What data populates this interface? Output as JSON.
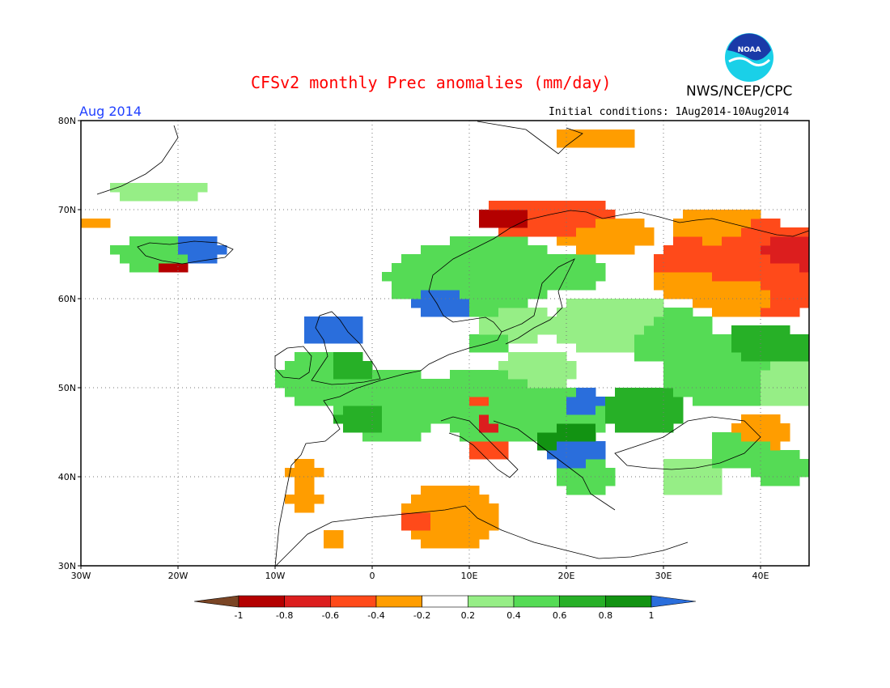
{
  "header": {
    "title": "CFSv2 monthly Prec anomalies (mm/day)",
    "organization": "NWS/NCEP/CPC",
    "period": "Aug 2014",
    "initial_conditions": "Initial conditions: 1Aug2014-10Aug2014"
  },
  "logo": {
    "text": "NOAA",
    "icon": "noaa-logo-icon"
  },
  "map": {
    "lon_range": [
      -30,
      45
    ],
    "lat_range": [
      30,
      80
    ],
    "x_ticks": [
      "30W",
      "20W",
      "10W",
      "0",
      "10E",
      "20E",
      "30E",
      "40E"
    ],
    "y_ticks": [
      "30N",
      "40N",
      "50N",
      "60N",
      "70N",
      "80N"
    ],
    "grid": "dotted"
  },
  "legend": {
    "labels": [
      "-1",
      "-0.8",
      "-0.6",
      "-0.4",
      "-0.2",
      "0.2",
      "0.4",
      "0.6",
      "0.8",
      "1"
    ],
    "colors": [
      "#7a4525",
      "#b40000",
      "#dc1e1e",
      "#ff4a1a",
      "#ff9d00",
      "#ffffff",
      "#96ee86",
      "#55db55",
      "#27b027",
      "#129312",
      "#2a6edc"
    ]
  },
  "colors": {
    "title": "#ff0000",
    "period": "#2040ff",
    "coast": "#000000"
  }
}
